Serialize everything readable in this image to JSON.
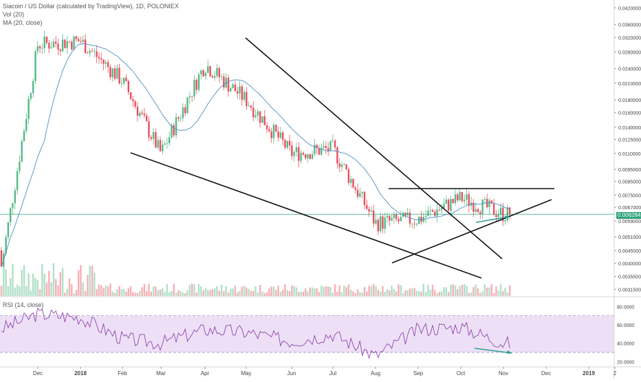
{
  "header": {
    "symbol_title": "Siacoin / US Dollar (calculated by TradingView), 1D, POLONIEX",
    "volume_legend": "Vol (20)",
    "ma_legend": "MA (20, close)"
  },
  "rsi_panel": {
    "legend": "RSI (14, close)"
  },
  "colors": {
    "up": "#53b987",
    "down": "#eb4d5c",
    "ma": "#4a90c2",
    "rsi_line": "#8e44ad",
    "rsi_band": "#e7d5f3",
    "arrow": "#2a9d8f",
    "price_line": "#2ea37a"
  },
  "chart_data": [
    {
      "type": "candlestick",
      "title": "Siacoin / US Dollar (calculated by TradingView), 1D, POLONIEX",
      "x_ticks": [
        "Dec",
        "2018",
        "Feb",
        "Mar",
        "Apr",
        "May",
        "Jun",
        "Jul",
        "Aug",
        "Sep",
        "Oct",
        "Nov",
        "Dec",
        "2019",
        "2"
      ],
      "y_scale": "log",
      "y_ticks": [
        "0.04200000",
        "0.03600000",
        "0.03200000",
        "0.02800000",
        "0.02400000",
        "0.02100000",
        "0.01800000",
        "0.01600000",
        "0.01400000",
        "0.01250000",
        "0.01100000",
        "0.00950000",
        "0.00850000",
        "0.00750000",
        "0.00670000",
        "0.00590000",
        "0.00510000",
        "0.00450000",
        "0.00400000",
        "0.00355000",
        "0.00315000"
      ],
      "ylim": [
        0.003,
        0.044
      ],
      "last_price_label": "0.00628453",
      "last_price": 0.00628453,
      "monthly_closes": [
        {
          "month": "Dec 2017",
          "close": 0.03
        },
        {
          "month": "Jan 2018",
          "close": 0.031
        },
        {
          "month": "Feb 2018",
          "close": 0.0215
        },
        {
          "month": "Mar 2018",
          "close": 0.011
        },
        {
          "month": "Apr 2018",
          "close": 0.025
        },
        {
          "month": "May 2018",
          "close": 0.018
        },
        {
          "month": "Jun 2018",
          "close": 0.011
        },
        {
          "month": "Jul 2018",
          "close": 0.0115
        },
        {
          "month": "Aug 2018",
          "close": 0.0058
        },
        {
          "month": "Sep 2018",
          "close": 0.006
        },
        {
          "month": "Oct 2018",
          "close": 0.0073
        },
        {
          "month": "Nov 2018",
          "close": 0.0063
        }
      ],
      "grid": false,
      "series": [
        {
          "name": "Vol (20)"
        },
        {
          "name": "MA (20, close)"
        }
      ]
    },
    {
      "type": "line",
      "title": "RSI (14, close)",
      "y_ticks": [
        "80.0000",
        "60.0000",
        "40.0000",
        "20.0000"
      ],
      "ylim": [
        15,
        90
      ],
      "band": [
        30,
        70
      ],
      "monthly_values": [
        {
          "month": "Dec 2017",
          "value": 72
        },
        {
          "month": "Jan 2018",
          "value": 68
        },
        {
          "month": "Feb 2018",
          "value": 45
        },
        {
          "month": "Mar 2018",
          "value": 40
        },
        {
          "month": "Apr 2018",
          "value": 55
        },
        {
          "month": "May 2018",
          "value": 52
        },
        {
          "month": "Jun 2018",
          "value": 42
        },
        {
          "month": "Jul 2018",
          "value": 50
        },
        {
          "month": "Aug 2018",
          "value": 26
        },
        {
          "month": "Sep 2018",
          "value": 55
        },
        {
          "month": "Oct 2018",
          "value": 58
        },
        {
          "month": "Nov 2018",
          "value": 40
        }
      ]
    }
  ]
}
